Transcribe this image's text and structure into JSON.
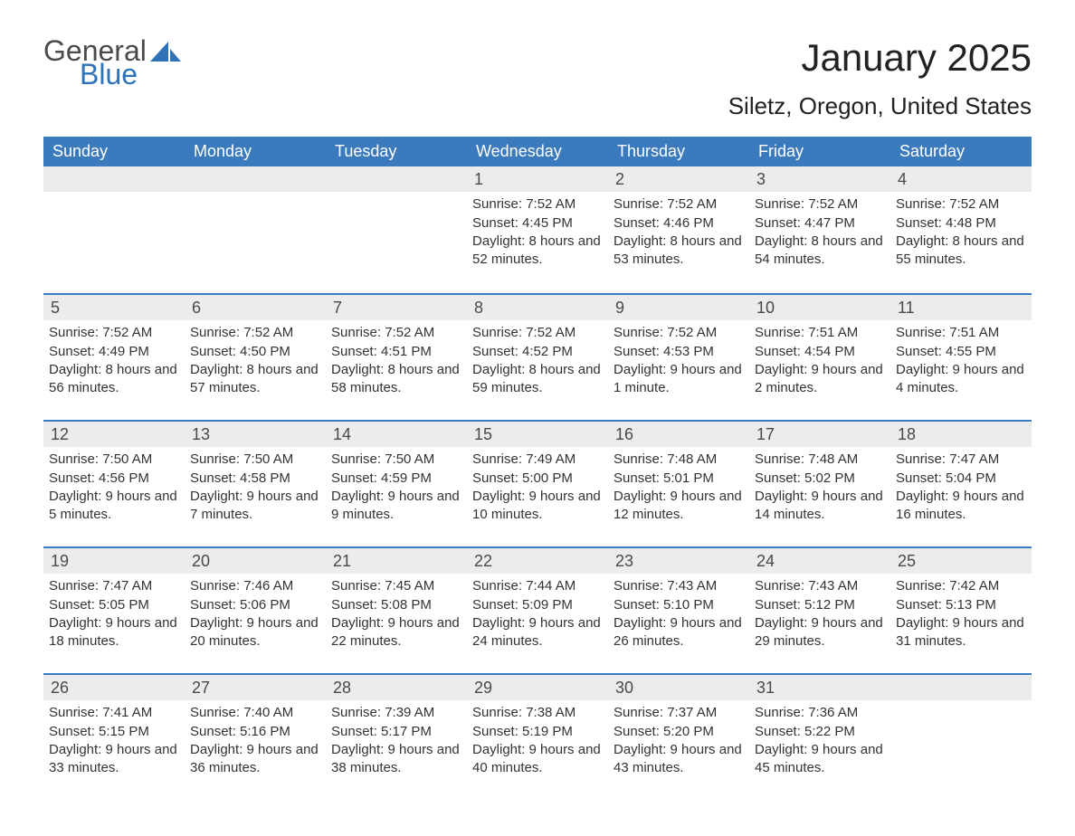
{
  "brand": {
    "word1": "General",
    "word2": "Blue"
  },
  "title": "January 2025",
  "location": "Siletz, Oregon, United States",
  "colors": {
    "header_bg": "#3a7abd",
    "header_text": "#ffffff",
    "daynum_bg": "#ececec",
    "text": "#333333",
    "rule": "#3a7abd",
    "brand_gray": "#4a4a4a",
    "brand_blue": "#2f72b8"
  },
  "weekdays": [
    "Sunday",
    "Monday",
    "Tuesday",
    "Wednesday",
    "Thursday",
    "Friday",
    "Saturday"
  ],
  "weeks": [
    [
      null,
      null,
      null,
      {
        "n": "1",
        "sunrise": "Sunrise: 7:52 AM",
        "sunset": "Sunset: 4:45 PM",
        "daylight": "Daylight: 8 hours and 52 minutes."
      },
      {
        "n": "2",
        "sunrise": "Sunrise: 7:52 AM",
        "sunset": "Sunset: 4:46 PM",
        "daylight": "Daylight: 8 hours and 53 minutes."
      },
      {
        "n": "3",
        "sunrise": "Sunrise: 7:52 AM",
        "sunset": "Sunset: 4:47 PM",
        "daylight": "Daylight: 8 hours and 54 minutes."
      },
      {
        "n": "4",
        "sunrise": "Sunrise: 7:52 AM",
        "sunset": "Sunset: 4:48 PM",
        "daylight": "Daylight: 8 hours and 55 minutes."
      }
    ],
    [
      {
        "n": "5",
        "sunrise": "Sunrise: 7:52 AM",
        "sunset": "Sunset: 4:49 PM",
        "daylight": "Daylight: 8 hours and 56 minutes."
      },
      {
        "n": "6",
        "sunrise": "Sunrise: 7:52 AM",
        "sunset": "Sunset: 4:50 PM",
        "daylight": "Daylight: 8 hours and 57 minutes."
      },
      {
        "n": "7",
        "sunrise": "Sunrise: 7:52 AM",
        "sunset": "Sunset: 4:51 PM",
        "daylight": "Daylight: 8 hours and 58 minutes."
      },
      {
        "n": "8",
        "sunrise": "Sunrise: 7:52 AM",
        "sunset": "Sunset: 4:52 PM",
        "daylight": "Daylight: 8 hours and 59 minutes."
      },
      {
        "n": "9",
        "sunrise": "Sunrise: 7:52 AM",
        "sunset": "Sunset: 4:53 PM",
        "daylight": "Daylight: 9 hours and 1 minute."
      },
      {
        "n": "10",
        "sunrise": "Sunrise: 7:51 AM",
        "sunset": "Sunset: 4:54 PM",
        "daylight": "Daylight: 9 hours and 2 minutes."
      },
      {
        "n": "11",
        "sunrise": "Sunrise: 7:51 AM",
        "sunset": "Sunset: 4:55 PM",
        "daylight": "Daylight: 9 hours and 4 minutes."
      }
    ],
    [
      {
        "n": "12",
        "sunrise": "Sunrise: 7:50 AM",
        "sunset": "Sunset: 4:56 PM",
        "daylight": "Daylight: 9 hours and 5 minutes."
      },
      {
        "n": "13",
        "sunrise": "Sunrise: 7:50 AM",
        "sunset": "Sunset: 4:58 PM",
        "daylight": "Daylight: 9 hours and 7 minutes."
      },
      {
        "n": "14",
        "sunrise": "Sunrise: 7:50 AM",
        "sunset": "Sunset: 4:59 PM",
        "daylight": "Daylight: 9 hours and 9 minutes."
      },
      {
        "n": "15",
        "sunrise": "Sunrise: 7:49 AM",
        "sunset": "Sunset: 5:00 PM",
        "daylight": "Daylight: 9 hours and 10 minutes."
      },
      {
        "n": "16",
        "sunrise": "Sunrise: 7:48 AM",
        "sunset": "Sunset: 5:01 PM",
        "daylight": "Daylight: 9 hours and 12 minutes."
      },
      {
        "n": "17",
        "sunrise": "Sunrise: 7:48 AM",
        "sunset": "Sunset: 5:02 PM",
        "daylight": "Daylight: 9 hours and 14 minutes."
      },
      {
        "n": "18",
        "sunrise": "Sunrise: 7:47 AM",
        "sunset": "Sunset: 5:04 PM",
        "daylight": "Daylight: 9 hours and 16 minutes."
      }
    ],
    [
      {
        "n": "19",
        "sunrise": "Sunrise: 7:47 AM",
        "sunset": "Sunset: 5:05 PM",
        "daylight": "Daylight: 9 hours and 18 minutes."
      },
      {
        "n": "20",
        "sunrise": "Sunrise: 7:46 AM",
        "sunset": "Sunset: 5:06 PM",
        "daylight": "Daylight: 9 hours and 20 minutes."
      },
      {
        "n": "21",
        "sunrise": "Sunrise: 7:45 AM",
        "sunset": "Sunset: 5:08 PM",
        "daylight": "Daylight: 9 hours and 22 minutes."
      },
      {
        "n": "22",
        "sunrise": "Sunrise: 7:44 AM",
        "sunset": "Sunset: 5:09 PM",
        "daylight": "Daylight: 9 hours and 24 minutes."
      },
      {
        "n": "23",
        "sunrise": "Sunrise: 7:43 AM",
        "sunset": "Sunset: 5:10 PM",
        "daylight": "Daylight: 9 hours and 26 minutes."
      },
      {
        "n": "24",
        "sunrise": "Sunrise: 7:43 AM",
        "sunset": "Sunset: 5:12 PM",
        "daylight": "Daylight: 9 hours and 29 minutes."
      },
      {
        "n": "25",
        "sunrise": "Sunrise: 7:42 AM",
        "sunset": "Sunset: 5:13 PM",
        "daylight": "Daylight: 9 hours and 31 minutes."
      }
    ],
    [
      {
        "n": "26",
        "sunrise": "Sunrise: 7:41 AM",
        "sunset": "Sunset: 5:15 PM",
        "daylight": "Daylight: 9 hours and 33 minutes."
      },
      {
        "n": "27",
        "sunrise": "Sunrise: 7:40 AM",
        "sunset": "Sunset: 5:16 PM",
        "daylight": "Daylight: 9 hours and 36 minutes."
      },
      {
        "n": "28",
        "sunrise": "Sunrise: 7:39 AM",
        "sunset": "Sunset: 5:17 PM",
        "daylight": "Daylight: 9 hours and 38 minutes."
      },
      {
        "n": "29",
        "sunrise": "Sunrise: 7:38 AM",
        "sunset": "Sunset: 5:19 PM",
        "daylight": "Daylight: 9 hours and 40 minutes."
      },
      {
        "n": "30",
        "sunrise": "Sunrise: 7:37 AM",
        "sunset": "Sunset: 5:20 PM",
        "daylight": "Daylight: 9 hours and 43 minutes."
      },
      {
        "n": "31",
        "sunrise": "Sunrise: 7:36 AM",
        "sunset": "Sunset: 5:22 PM",
        "daylight": "Daylight: 9 hours and 45 minutes."
      },
      null
    ]
  ]
}
